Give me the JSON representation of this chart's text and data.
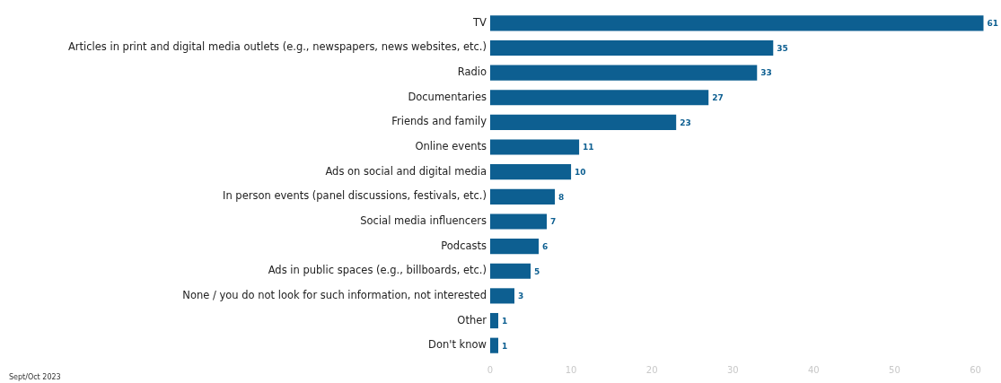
{
  "chart_data": {
    "type": "bar",
    "orientation": "horizontal",
    "categories": [
      "TV",
      "Articles in print and digital media outlets (e.g., newspapers, news websites, etc.)",
      "Radio",
      "Documentaries",
      "Friends and family",
      "Online events",
      "Ads on social and digital media",
      "In person events (panel discussions, festivals, etc.)",
      "Social media influencers",
      "Podcasts",
      "Ads in public spaces (e.g., billboards, etc.)",
      "None / you do not look for such information, not interested",
      "Other",
      "Don't know"
    ],
    "values": [
      61,
      35,
      33,
      27,
      23,
      11,
      10,
      8,
      7,
      6,
      5,
      3,
      1,
      1
    ],
    "color": "#0d5f91",
    "xlim": [
      0,
      61.5
    ],
    "xticks": [
      0,
      10,
      20,
      30,
      40,
      50,
      60
    ],
    "grid": false,
    "legend": false,
    "data_labels": true,
    "annotations": [
      "Sept/Oct 2023"
    ]
  }
}
